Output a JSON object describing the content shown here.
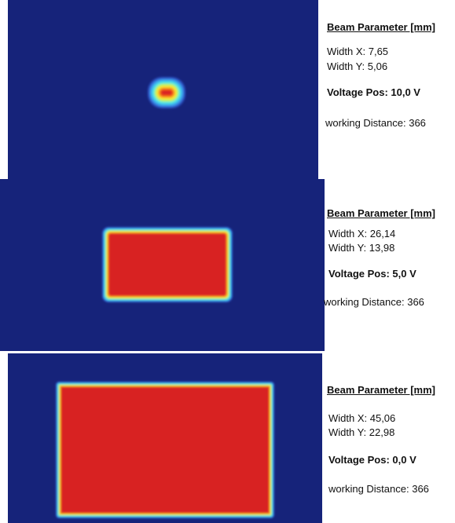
{
  "panels": [
    {
      "heading": "Beam Parameter [mm]",
      "width_x": "Width X: 7,65",
      "width_y": "Width Y: 5,06",
      "voltage": "Voltage Pos: 10,0 V",
      "distance": "working Distance: 366"
    },
    {
      "heading": "Beam Parameter [mm]",
      "width_x": "Width X: 26,14",
      "width_y": "Width Y: 13,98",
      "voltage": "Voltage Pos: 5,0 V",
      "distance": "working Distance: 366"
    },
    {
      "heading": "Beam Parameter [mm]",
      "width_x": "Width X: 45,06",
      "width_y": "Width Y: 22,98",
      "voltage": "Voltage Pos: 0,0 V",
      "distance": "working Distance: 366"
    }
  ]
}
